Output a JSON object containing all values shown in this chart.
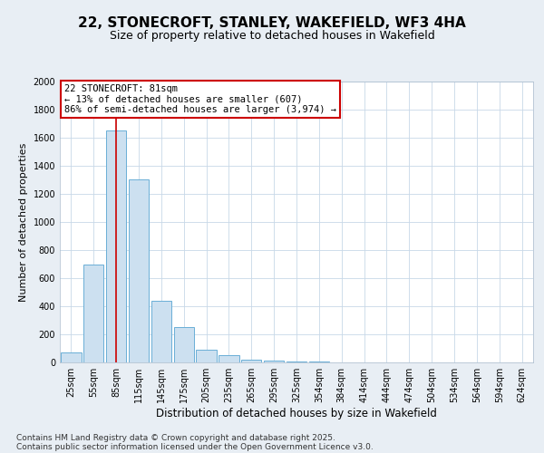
{
  "title": "22, STONECROFT, STANLEY, WAKEFIELD, WF3 4HA",
  "subtitle": "Size of property relative to detached houses in Wakefield",
  "xlabel": "Distribution of detached houses by size in Wakefield",
  "ylabel": "Number of detached properties",
  "categories": [
    "25sqm",
    "55sqm",
    "85sqm",
    "115sqm",
    "145sqm",
    "175sqm",
    "205sqm",
    "235sqm",
    "265sqm",
    "295sqm",
    "325sqm",
    "354sqm",
    "384sqm",
    "414sqm",
    "444sqm",
    "474sqm",
    "504sqm",
    "534sqm",
    "564sqm",
    "594sqm",
    "624sqm"
  ],
  "values": [
    70,
    700,
    1650,
    1300,
    440,
    250,
    90,
    50,
    20,
    10,
    5,
    4,
    3,
    2,
    2,
    1,
    1,
    0,
    0,
    0,
    0
  ],
  "bar_color": "#cce0f0",
  "bar_edge_color": "#6aafd6",
  "ylim": [
    0,
    2000
  ],
  "red_line_index": 2,
  "annotation_text": "22 STONECROFT: 81sqm\n← 13% of detached houses are smaller (607)\n86% of semi-detached houses are larger (3,974) →",
  "annotation_box_color": "#ffffff",
  "annotation_box_edge_color": "#cc0000",
  "red_line_color": "#cc0000",
  "footer_line1": "Contains HM Land Registry data © Crown copyright and database right 2025.",
  "footer_line2": "Contains public sector information licensed under the Open Government Licence v3.0.",
  "background_color": "#e8eef4",
  "plot_background": "#ffffff",
  "grid_color": "#c8d8e8",
  "title_fontsize": 11,
  "subtitle_fontsize": 9,
  "tick_fontsize": 7,
  "ylabel_fontsize": 8,
  "xlabel_fontsize": 8.5,
  "footer_fontsize": 6.5,
  "annotation_fontsize": 7.5
}
